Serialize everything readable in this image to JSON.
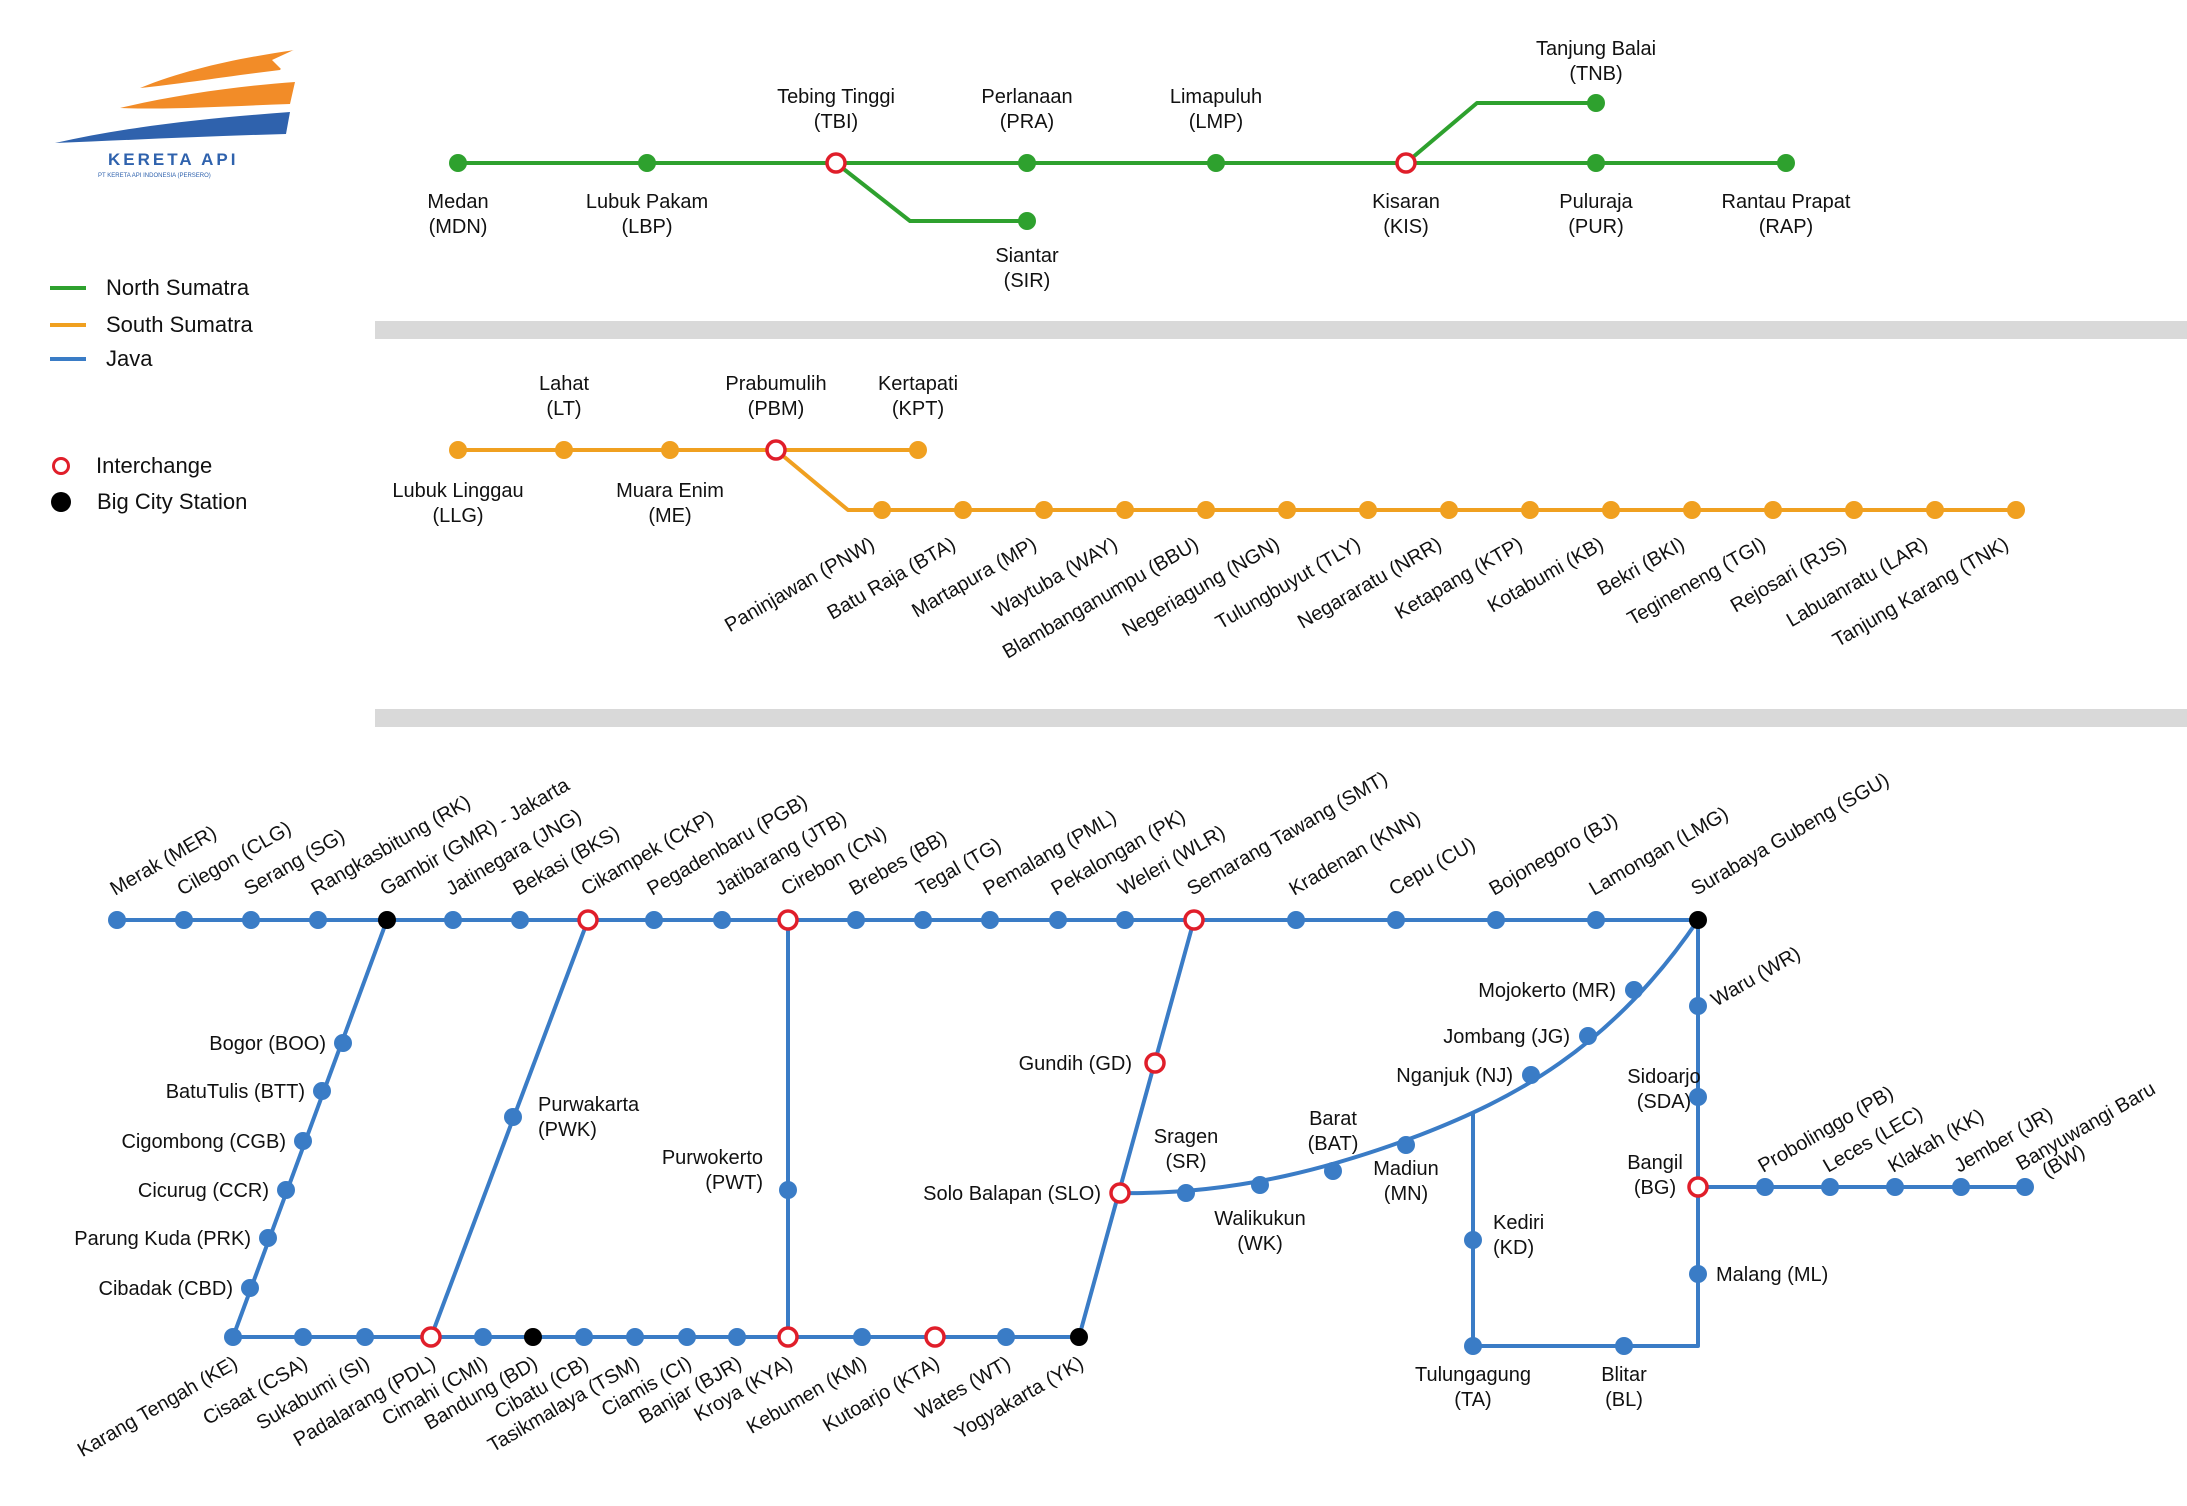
{
  "logo": {
    "brand": "KERETA API",
    "subtitle": "PT KERETA API INDONESIA (PERSERO)"
  },
  "legend": {
    "lines": [
      {
        "label": "North Sumatra",
        "color": "#2ea12e"
      },
      {
        "label": "South Sumatra",
        "color": "#f0a020"
      },
      {
        "label": "Java",
        "color": "#3a7cc6"
      }
    ],
    "interchange_label": "Interchange",
    "big_city_label": "Big City Station"
  },
  "colors": {
    "north": "#2ea12e",
    "south": "#f0a020",
    "java": "#3a7cc6",
    "interchange": "#e01e2a",
    "big_city": "#000000",
    "divider": "#d9d9d9"
  },
  "stations": {
    "north": [
      {
        "name": "Medan",
        "code": "(MDN)",
        "type": "regular"
      },
      {
        "name": "Lubuk Pakam",
        "code": "(LBP)",
        "type": "regular"
      },
      {
        "name": "Tebing Tinggi",
        "code": "(TBI)",
        "type": "interchange"
      },
      {
        "name": "Perlanaan",
        "code": "(PRA)",
        "type": "regular"
      },
      {
        "name": "Limapuluh",
        "code": "(LMP)",
        "type": "regular"
      },
      {
        "name": "Kisaran",
        "code": "(KIS)",
        "type": "interchange"
      },
      {
        "name": "Puluraja",
        "code": "(PUR)",
        "type": "regular"
      },
      {
        "name": "Rantau Prapat",
        "code": "(RAP)",
        "type": "regular"
      },
      {
        "name": "Siantar",
        "code": "(SIR)",
        "type": "regular"
      },
      {
        "name": "Tanjung Balai",
        "code": "(TNB)",
        "type": "regular"
      }
    ],
    "south": [
      {
        "name": "Lubuk Linggau",
        "code": "(LLG)",
        "type": "regular"
      },
      {
        "name": "Lahat",
        "code": "(LT)",
        "type": "regular"
      },
      {
        "name": "Muara Enim",
        "code": "(ME)",
        "type": "regular"
      },
      {
        "name": "Prabumulih",
        "code": "(PBM)",
        "type": "interchange"
      },
      {
        "name": "Kertapati",
        "code": "(KPT)",
        "type": "regular"
      },
      {
        "label": "Paninjawan (PNW)",
        "type": "regular"
      },
      {
        "label": "Batu Raja (BTA)",
        "type": "regular"
      },
      {
        "label": "Martapura (MP)",
        "type": "regular"
      },
      {
        "label": "Waytuba (WAY)",
        "type": "regular"
      },
      {
        "label": "Blambanganumpu (BBU)",
        "type": "regular"
      },
      {
        "label": "Negeriagung (NGN)",
        "type": "regular"
      },
      {
        "label": "Tulungbuyut (TLY)",
        "type": "regular"
      },
      {
        "label": "Negararatu (NRR)",
        "type": "regular"
      },
      {
        "label": "Ketapang (KTP)",
        "type": "regular"
      },
      {
        "label": "Kotabumi (KB)",
        "type": "regular"
      },
      {
        "label": "Bekri (BKI)",
        "type": "regular"
      },
      {
        "label": "Tegineneng (TGI)",
        "type": "regular"
      },
      {
        "label": "Rejosari (RJS)",
        "type": "regular"
      },
      {
        "label": "Labuanratu (LAR)",
        "type": "regular"
      },
      {
        "label": "Tanjung Karang (TNK)",
        "type": "regular"
      }
    ],
    "java_top": [
      {
        "label": "Merak (MER)",
        "type": "regular"
      },
      {
        "label": "Cilegon (CLG)",
        "type": "regular"
      },
      {
        "label": "Serang (SG)",
        "type": "regular"
      },
      {
        "label": "Rangkasbitung (RK)",
        "type": "regular"
      },
      {
        "label": "Gambir (GMR) - Jakarta",
        "type": "big_city"
      },
      {
        "label": "Jatinegara (JNG)",
        "type": "regular"
      },
      {
        "label": "Bekasi (BKS)",
        "type": "regular"
      },
      {
        "label": "Cikampek (CKP)",
        "type": "interchange"
      },
      {
        "label": "Pegadenbaru (PGB)",
        "type": "regular"
      },
      {
        "label": "Jatibarang (JTB)",
        "type": "regular"
      },
      {
        "label": "Cirebon (CN)",
        "type": "interchange"
      },
      {
        "label": "Brebes (BB)",
        "type": "regular"
      },
      {
        "label": "Tegal (TG)",
        "type": "regular"
      },
      {
        "label": "Pemalang (PML)",
        "type": "regular"
      },
      {
        "label": "Pekalongan (PK)",
        "type": "regular"
      },
      {
        "label": "Weleri (WLR)",
        "type": "regular"
      },
      {
        "label": "Semarang Tawang (SMT)",
        "type": "interchange"
      },
      {
        "label": "Kradenan (KNN)",
        "type": "regular"
      },
      {
        "label": "Cepu (CU)",
        "type": "regular"
      },
      {
        "label": "Bojonegoro (BJ)",
        "type": "regular"
      },
      {
        "label": "Lamongan (LMG)",
        "type": "regular"
      },
      {
        "label": "Surabaya Gubeng  (SGU)",
        "type": "big_city"
      }
    ],
    "java_bottom": [
      {
        "label": "Karang Tengah (KE)",
        "type": "regular"
      },
      {
        "label": "Cisaat (CSA)",
        "type": "regular"
      },
      {
        "label": "Sukabumi (SI)",
        "type": "regular"
      },
      {
        "label": "Padalarang (PDL)",
        "type": "interchange"
      },
      {
        "label": "Cimahi (CMI)",
        "type": "regular"
      },
      {
        "label": "Bandung (BD)",
        "type": "big_city"
      },
      {
        "label": "Cibatu (CB)",
        "type": "regular"
      },
      {
        "label": "Tasikmalaya (TSM)",
        "type": "regular"
      },
      {
        "label": "Ciamis (CI)",
        "type": "regular"
      },
      {
        "label": "Banjar (BJR)",
        "type": "regular"
      },
      {
        "label": "Kroya (KYA)",
        "type": "interchange"
      },
      {
        "label": "Kebumen (KM)",
        "type": "regular"
      },
      {
        "label": "Kutoarjo (KTA)",
        "type": "interchange"
      },
      {
        "label": "Wates (WT)",
        "type": "regular"
      },
      {
        "label": "Yogyakarta (YK)",
        "type": "big_city"
      }
    ],
    "java_branch": [
      {
        "label": "Bogor (BOO)",
        "type": "regular"
      },
      {
        "label": "BatuTulis (BTT)",
        "type": "regular"
      },
      {
        "label": "Cigombong (CGB)",
        "type": "regular"
      },
      {
        "label": "Cicurug (CCR)",
        "type": "regular"
      },
      {
        "label": "Parung Kuda (PRK)",
        "type": "regular"
      },
      {
        "label": "Cibadak (CBD)",
        "type": "regular"
      },
      {
        "name": "Purwakarta",
        "code": "(PWK)",
        "type": "regular"
      },
      {
        "name": "Purwokerto",
        "code": "(PWT)",
        "type": "regular"
      },
      {
        "label": "Gundih (GD)",
        "type": "interchange"
      },
      {
        "label": "Solo Balapan (SLO)",
        "type": "interchange"
      },
      {
        "name": "Sragen",
        "code": "(SR)",
        "type": "regular"
      },
      {
        "name": "Walikukun",
        "code": "(WK)",
        "type": "regular"
      },
      {
        "name": "Barat",
        "code": "(BAT)",
        "type": "regular"
      },
      {
        "name": "Madiun",
        "code": "(MN)",
        "type": "regular"
      },
      {
        "label": "Nganjuk (NJ)",
        "type": "regular"
      },
      {
        "label": "Jombang (JG)",
        "type": "regular"
      },
      {
        "label": "Mojokerto (MR)",
        "type": "regular"
      },
      {
        "name": "Kediri",
        "code": "(KD)",
        "type": "regular"
      },
      {
        "name": "Tulungagung",
        "code": "(TA)",
        "type": "regular"
      },
      {
        "name": "Blitar",
        "code": "(BL)",
        "type": "regular"
      },
      {
        "label": "Waru (WR)",
        "type": "regular"
      },
      {
        "name": "Sidoarjo",
        "code": "(SDA)",
        "type": "regular"
      },
      {
        "name": "Bangil",
        "code": "(BG)",
        "type": "interchange"
      },
      {
        "label": "Malang (ML)",
        "type": "regular"
      },
      {
        "label": "Probolinggo (PB)",
        "type": "regular"
      },
      {
        "label": "Leces (LEC)",
        "type": "regular"
      },
      {
        "label": "Klakah (KK)",
        "type": "regular"
      },
      {
        "label": "Jember (JR)",
        "type": "regular"
      },
      {
        "name": "Banyuwangi Baru",
        "code": "(BW)",
        "type": "regular"
      }
    ]
  }
}
